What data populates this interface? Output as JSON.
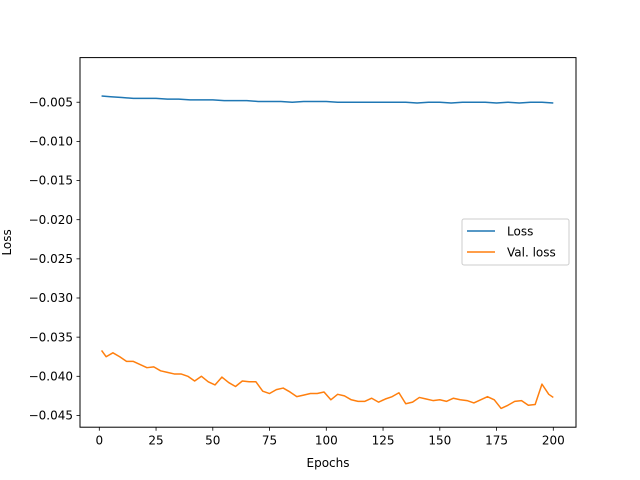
{
  "chart_data": {
    "type": "line",
    "title": "",
    "xlabel": "Epochs",
    "ylabel": "Loss",
    "xlim": [
      -8.5,
      210
    ],
    "ylim": [
      -0.0465,
      0.0007
    ],
    "xticks": [
      0,
      25,
      50,
      75,
      100,
      125,
      150,
      175,
      200
    ],
    "yticks": [
      -0.005,
      -0.01,
      -0.015,
      -0.02,
      -0.025,
      -0.03,
      -0.035,
      -0.04,
      -0.045
    ],
    "xtick_labels": [
      "0",
      "25",
      "50",
      "75",
      "100",
      "125",
      "150",
      "175",
      "200"
    ],
    "ytick_labels": [
      "−0.005",
      "−0.010",
      "−0.015",
      "−0.020",
      "−0.025",
      "−0.030",
      "−0.035",
      "−0.040",
      "−0.045"
    ],
    "grid": false,
    "legend_position": "center-right",
    "series": [
      {
        "name": "Loss",
        "color": "#1f77b4",
        "x": [
          1,
          5,
          10,
          15,
          20,
          25,
          30,
          35,
          40,
          45,
          50,
          55,
          60,
          65,
          70,
          75,
          80,
          85,
          90,
          95,
          100,
          105,
          110,
          115,
          120,
          125,
          130,
          135,
          140,
          145,
          150,
          155,
          160,
          165,
          170,
          175,
          180,
          185,
          190,
          195,
          200
        ],
        "values": [
          -0.0042,
          -0.0043,
          -0.0044,
          -0.0045,
          -0.0045,
          -0.0045,
          -0.0046,
          -0.0046,
          -0.0047,
          -0.0047,
          -0.0047,
          -0.0048,
          -0.0048,
          -0.0048,
          -0.0049,
          -0.0049,
          -0.0049,
          -0.005,
          -0.0049,
          -0.0049,
          -0.0049,
          -0.005,
          -0.005,
          -0.005,
          -0.005,
          -0.005,
          -0.005,
          -0.005,
          -0.0051,
          -0.005,
          -0.005,
          -0.0051,
          -0.005,
          -0.005,
          -0.005,
          -0.0051,
          -0.005,
          -0.0051,
          -0.005,
          -0.005,
          -0.0051
        ]
      },
      {
        "name": "Val. loss",
        "color": "#ff7f0e",
        "x": [
          1,
          3,
          6,
          9,
          12,
          15,
          18,
          21,
          24,
          27,
          30,
          33,
          36,
          39,
          42,
          45,
          48,
          51,
          54,
          57,
          60,
          63,
          66,
          69,
          72,
          75,
          78,
          81,
          84,
          87,
          90,
          93,
          96,
          99,
          102,
          105,
          108,
          111,
          114,
          117,
          120,
          123,
          126,
          129,
          132,
          135,
          138,
          141,
          144,
          147,
          150,
          153,
          156,
          159,
          162,
          165,
          168,
          171,
          174,
          177,
          180,
          183,
          186,
          189,
          192,
          195,
          198,
          200
        ],
        "values": [
          -0.0367,
          -0.0375,
          -0.037,
          -0.0375,
          -0.0381,
          -0.0381,
          -0.0385,
          -0.0389,
          -0.0388,
          -0.0393,
          -0.0395,
          -0.0397,
          -0.0397,
          -0.04,
          -0.0406,
          -0.04,
          -0.0407,
          -0.0411,
          -0.0401,
          -0.0408,
          -0.0413,
          -0.0406,
          -0.0407,
          -0.0407,
          -0.0419,
          -0.0422,
          -0.0417,
          -0.0415,
          -0.042,
          -0.0426,
          -0.0424,
          -0.0422,
          -0.0422,
          -0.042,
          -0.043,
          -0.0423,
          -0.0425,
          -0.043,
          -0.0432,
          -0.0432,
          -0.0428,
          -0.0433,
          -0.0429,
          -0.0426,
          -0.0421,
          -0.0435,
          -0.0433,
          -0.0427,
          -0.0429,
          -0.0431,
          -0.043,
          -0.0432,
          -0.0428,
          -0.043,
          -0.0431,
          -0.0434,
          -0.043,
          -0.0426,
          -0.043,
          -0.0441,
          -0.0437,
          -0.0432,
          -0.0431,
          -0.0437,
          -0.0436,
          -0.041,
          -0.0423,
          -0.0427
        ]
      }
    ]
  }
}
